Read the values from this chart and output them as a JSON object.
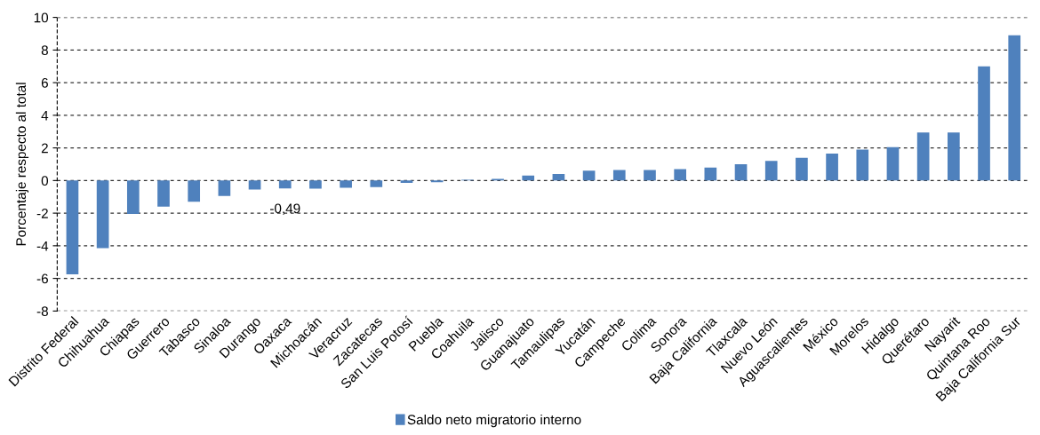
{
  "chart_data": {
    "type": "bar",
    "ylabel": "Porcentaje respecto al total",
    "categories": [
      "Distrito Federal",
      "Chihuahua",
      "Chiapas",
      "Guerrero",
      "Tabasco",
      "Sinaloa",
      "Durango",
      "Oaxaca",
      "Michoacán",
      "Veracruz",
      "Zacatecas",
      "San Luis Potosí",
      "Puebla",
      "Coahuila",
      "Jalisco",
      "Guanajuato",
      "Tamaulipas",
      "Yucatán",
      "Campeche",
      "Colima",
      "Sonora",
      "Baja California",
      "Tlaxcala",
      "Nuevo León",
      "Aguascalientes",
      "México",
      "Morelos",
      "Hidalgo",
      "Querétaro",
      "Nayarit",
      "Quintana Roo",
      "Baja California Sur"
    ],
    "series": [
      {
        "name": "Saldo neto migratorio interno",
        "color": "#4f81bd",
        "values": [
          -5.75,
          -4.15,
          -2.05,
          -1.6,
          -1.3,
          -0.95,
          -0.55,
          -0.49,
          -0.5,
          -0.45,
          -0.4,
          -0.15,
          -0.1,
          0.05,
          0.1,
          0.3,
          0.4,
          0.6,
          0.65,
          0.65,
          0.7,
          0.8,
          1.0,
          1.2,
          1.4,
          1.65,
          1.9,
          2.05,
          2.95,
          2.95,
          7.0,
          8.9
        ],
        "value_labels": [
          null,
          null,
          null,
          null,
          null,
          null,
          null,
          "-0,49",
          null,
          null,
          null,
          null,
          null,
          null,
          null,
          null,
          null,
          null,
          null,
          null,
          null,
          null,
          null,
          null,
          null,
          null,
          null,
          null,
          null,
          null,
          null,
          null
        ]
      }
    ],
    "ylim": [
      -8,
      10
    ],
    "yticks": [
      -8,
      -6,
      -4,
      -2,
      0,
      2,
      4,
      6,
      8,
      10
    ],
    "grid": "y",
    "legend": "bottom"
  }
}
